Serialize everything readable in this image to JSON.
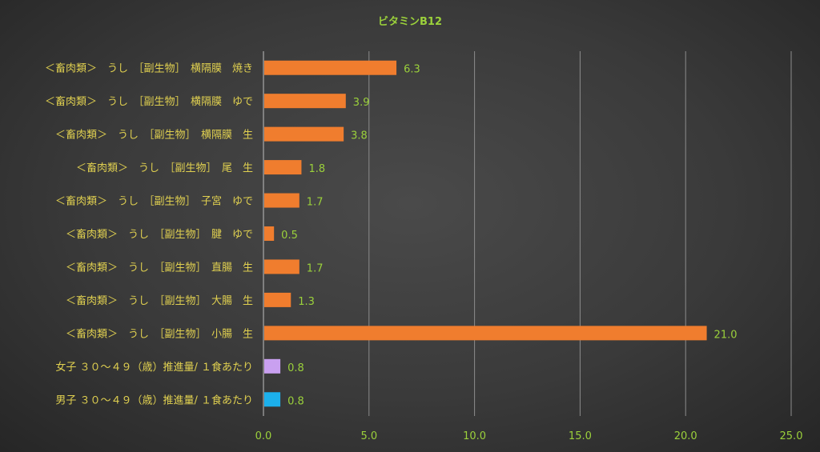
{
  "chart_data": {
    "type": "bar",
    "orientation": "horizontal",
    "title": "ビタミンB12",
    "categories": [
      "＜畜肉類＞　うし　［副生物］　横隔膜　焼き",
      "＜畜肉類＞　うし　［副生物］　横隔膜　ゆで",
      "＜畜肉類＞　うし　［副生物］　横隔膜　生",
      "＜畜肉類＞　うし　［副生物］　尾　生",
      "＜畜肉類＞　うし　［副生物］　子宮　ゆで",
      "＜畜肉類＞　うし　［副生物］　腱　ゆで",
      "＜畜肉類＞　うし　［副生物］　直腸　生",
      "＜畜肉類＞　うし　［副生物］　大腸　生",
      "＜畜肉類＞　うし　［副生物］　小腸　生",
      "女子 ３０～４９（歳）推進量/ １食あたり",
      "男子 ３０～４９（歳）推進量/ １食あたり"
    ],
    "values": [
      6.3,
      3.9,
      3.8,
      1.8,
      1.7,
      0.5,
      1.7,
      1.3,
      21.0,
      0.8,
      0.8
    ],
    "value_labels": [
      "6.3",
      "3.9",
      "3.8",
      "1.8",
      "1.7",
      "0.5",
      "1.7",
      "1.3",
      "21.0",
      "0.8",
      "0.8"
    ],
    "bar_colors": [
      "#F07D2E",
      "#F07D2E",
      "#F07D2E",
      "#F07D2E",
      "#F07D2E",
      "#F07D2E",
      "#F07D2E",
      "#F07D2E",
      "#F07D2E",
      "#C9A0F0",
      "#1CB0EC"
    ],
    "xlim": [
      0,
      25
    ],
    "x_ticks": [
      0,
      5,
      10,
      15,
      20,
      25
    ],
    "x_tick_labels": [
      "0.0",
      "5.0",
      "10.0",
      "15.0",
      "20.0",
      "25.0"
    ],
    "grid": "vertical",
    "legend": "none",
    "colors": {
      "title": "#9BD13B",
      "category_text": "#E0D050",
      "tick_text": "#9BD13B",
      "data_label_text": "#9BD13B",
      "gridline": "#8C8C8C",
      "axis_line": "#BFBFBF"
    }
  }
}
